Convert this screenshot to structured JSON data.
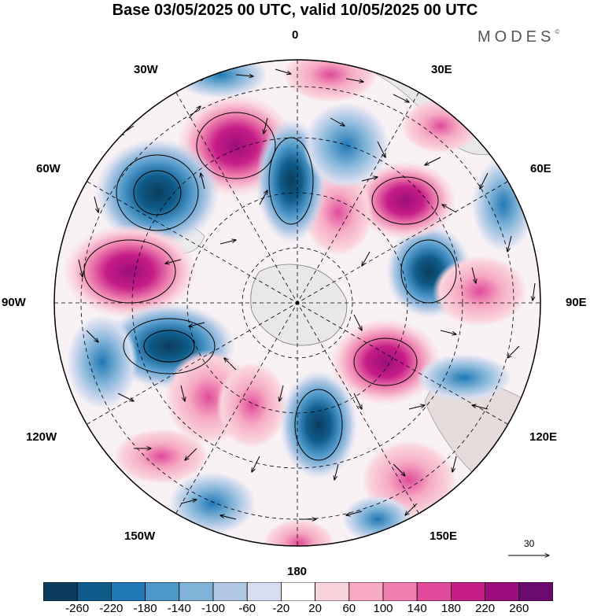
{
  "title": "Base 03/05/2025 00 UTC, valid 10/05/2025 00 UTC",
  "brand": "MODES",
  "brand_mark": "©",
  "longitude_labels": {
    "lon_0": "0",
    "lon_30e": "30E",
    "lon_60e": "60E",
    "lon_90e": "90E",
    "lon_120e": "120E",
    "lon_150e": "150E",
    "lon_180": "180",
    "lon_150w": "150W",
    "lon_120w": "120W",
    "lon_90w": "90W",
    "lon_60w": "60W",
    "lon_30w": "30W"
  },
  "vector_scale": {
    "label": "30"
  },
  "colorbar": {
    "ticks": [
      "-260",
      "-220",
      "-180",
      "-140",
      "-100",
      "-60",
      "-20",
      "20",
      "60",
      "100",
      "140",
      "180",
      "220",
      "260"
    ],
    "colors": [
      "#0b3c5d",
      "#0f5c8a",
      "#1f78b4",
      "#4d97c9",
      "#80b3d8",
      "#b1c8e4",
      "#d8def0",
      "#ffffff",
      "#fad4dd",
      "#f6abc3",
      "#ee7fae",
      "#e04a9a",
      "#c51d86",
      "#9c0d7c",
      "#6a0a6e"
    ]
  },
  "chart_data": {
    "type": "polar_map",
    "projection": "south polar stereographic",
    "field": "anomaly with wind vectors",
    "units_scale_vector": 30,
    "features": [
      {
        "sign": "positive",
        "lon_dir": "30W",
        "intensity": 240
      },
      {
        "sign": "negative",
        "lon_dir": "60W",
        "intensity": -260
      },
      {
        "sign": "positive",
        "lon_dir": "90W",
        "intensity": 240
      },
      {
        "sign": "negative",
        "lon_dir": "110W",
        "intensity": -240
      },
      {
        "sign": "positive",
        "lon_dir": "130W",
        "intensity": 120
      },
      {
        "sign": "positive",
        "lon_dir": "150W",
        "intensity": 100
      },
      {
        "sign": "negative",
        "lon_dir": "170E",
        "intensity": -180
      },
      {
        "sign": "positive",
        "lon_dir": "120E",
        "intensity": 200
      },
      {
        "sign": "negative",
        "lon_dir": "120E",
        "intensity": -160
      },
      {
        "sign": "negative",
        "lon_dir": "80E",
        "intensity": -220
      },
      {
        "sign": "positive",
        "lon_dir": "50E",
        "intensity": 240
      },
      {
        "sign": "positive",
        "lon_dir": "25E",
        "intensity": 140
      },
      {
        "sign": "negative",
        "lon_dir": "10E",
        "intensity": -200
      }
    ]
  }
}
